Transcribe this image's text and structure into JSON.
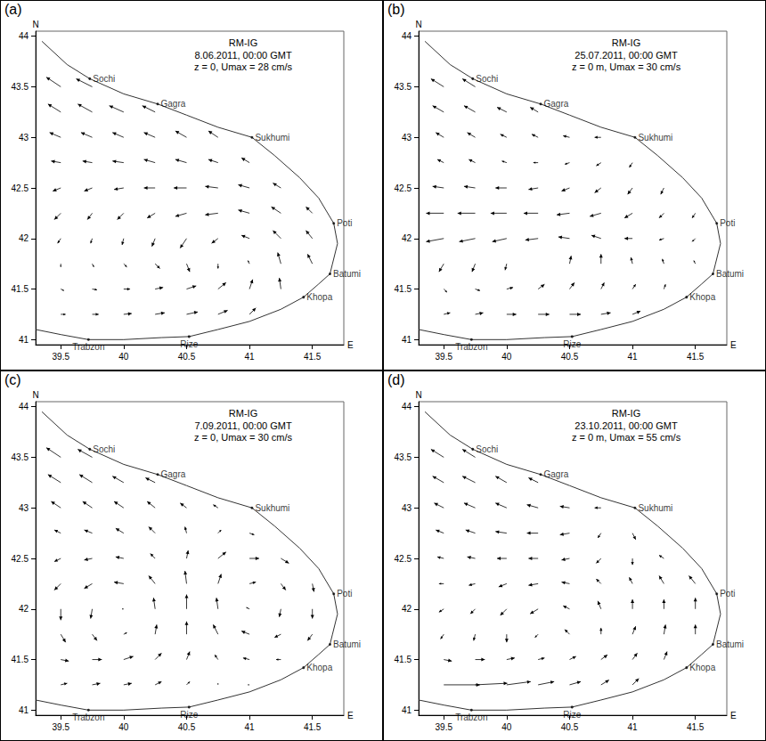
{
  "map": {
    "coastline": [
      [
        39.35,
        43.95
      ],
      [
        39.55,
        43.72
      ],
      [
        39.73,
        43.58
      ],
      [
        40.0,
        43.43
      ],
      [
        40.27,
        43.33
      ],
      [
        40.5,
        43.22
      ],
      [
        40.75,
        43.1
      ],
      [
        41.02,
        43.0
      ],
      [
        41.2,
        42.82
      ],
      [
        41.4,
        42.6
      ],
      [
        41.55,
        42.4
      ],
      [
        41.67,
        42.15
      ],
      [
        41.7,
        41.95
      ],
      [
        41.66,
        41.75
      ],
      [
        41.64,
        41.65
      ],
      [
        41.55,
        41.55
      ],
      [
        41.43,
        41.42
      ],
      [
        41.25,
        41.3
      ],
      [
        41.0,
        41.18
      ],
      [
        40.75,
        41.1
      ],
      [
        40.52,
        41.03
      ],
      [
        40.3,
        41.02
      ],
      [
        40.0,
        41.0
      ],
      [
        39.72,
        41.0
      ],
      [
        39.5,
        41.05
      ],
      [
        39.3,
        41.1
      ]
    ],
    "places": [
      {
        "name": "Sochi",
        "lon": 39.73,
        "lat": 43.58
      },
      {
        "name": "Gagra",
        "lon": 40.27,
        "lat": 43.33
      },
      {
        "name": "Sukhumi",
        "lon": 41.02,
        "lat": 43.0
      },
      {
        "name": "Poti",
        "lon": 41.67,
        "lat": 42.15
      },
      {
        "name": "Batumi",
        "lon": 41.64,
        "lat": 41.65
      },
      {
        "name": "Khopa",
        "lon": 41.43,
        "lat": 41.42
      },
      {
        "name": "Rize",
        "lon": 40.52,
        "lat": 41.03
      },
      {
        "name": "Trabzon",
        "lon": 39.72,
        "lat": 41.0
      }
    ]
  },
  "chart_data": [
    {
      "type": "vector",
      "panel": "(a)",
      "title": "RM-IG",
      "subtitle": [
        "8.06.2011, 00:00 GMT",
        "z = 0, Umax = 28 cm/s"
      ],
      "x_label": "E",
      "y_label": "N",
      "xlim": [
        39.3,
        41.75
      ],
      "ylim": [
        40.95,
        44.05
      ],
      "xticks": [
        39.5,
        40,
        40.5,
        41,
        41.5
      ],
      "yticks": [
        41,
        41.5,
        42,
        42.5,
        43,
        43.5,
        44
      ],
      "lons": [
        39.5,
        39.75,
        40,
        40.25,
        40.5,
        40.75,
        41,
        41.25,
        41.5
      ],
      "lats": [
        41.25,
        41.5,
        41.75,
        42,
        42.25,
        42.5,
        42.75,
        43,
        43.25,
        43.5
      ],
      "u": [
        [
          6,
          8,
          10,
          12,
          14,
          12,
          8,
          null,
          null
        ],
        [
          4,
          6,
          8,
          10,
          12,
          10,
          4,
          -2,
          null
        ],
        [
          0,
          2,
          4,
          6,
          4,
          0,
          -2,
          -4,
          -6
        ],
        [
          -4,
          -2,
          -2,
          -4,
          -8,
          -8,
          -10,
          -10,
          -8
        ],
        [
          -8,
          -6,
          -8,
          -10,
          -14,
          -16,
          -14,
          -12,
          -8
        ],
        [
          -10,
          -10,
          -12,
          -14,
          -16,
          -16,
          -14,
          -10,
          null
        ],
        [
          -12,
          -12,
          -14,
          -14,
          -14,
          -12,
          -10,
          null,
          null
        ],
        [
          -14,
          -14,
          -14,
          -14,
          -14,
          -12,
          null,
          null,
          null
        ],
        [
          -16,
          -18,
          -18,
          -16,
          null,
          null,
          null,
          null,
          null
        ],
        [
          -18,
          -20,
          null,
          null,
          null,
          null,
          null,
          null,
          null
        ]
      ],
      "v": [
        [
          0,
          0,
          1,
          2,
          3,
          5,
          8,
          null,
          null
        ],
        [
          -2,
          -1,
          0,
          2,
          4,
          8,
          12,
          14,
          null
        ],
        [
          -4,
          -4,
          -4,
          -6,
          -10,
          -6,
          4,
          14,
          12
        ],
        [
          -6,
          -6,
          -8,
          -10,
          -12,
          -6,
          4,
          10,
          10
        ],
        [
          -8,
          -8,
          -8,
          -6,
          -4,
          -2,
          4,
          8,
          8
        ],
        [
          -4,
          -4,
          -2,
          0,
          0,
          2,
          4,
          6,
          null
        ],
        [
          2,
          2,
          2,
          4,
          4,
          4,
          6,
          null,
          null
        ],
        [
          6,
          6,
          6,
          6,
          8,
          8,
          null,
          null,
          null
        ],
        [
          10,
          10,
          8,
          8,
          null,
          null,
          null,
          null,
          null
        ],
        [
          12,
          10,
          null,
          null,
          null,
          null,
          null,
          null,
          null
        ]
      ]
    },
    {
      "type": "vector",
      "panel": "(b)",
      "title": "RM-IG",
      "subtitle": [
        "25.07.2011, 00:00 GMT",
        "z = 0 m, Umax = 30 cm/s"
      ],
      "x_label": "E",
      "y_label": "N",
      "xlim": [
        39.3,
        41.75
      ],
      "ylim": [
        40.95,
        44.05
      ],
      "xticks": [
        39.5,
        40,
        40.5,
        41,
        41.5
      ],
      "yticks": [
        41,
        41.5,
        42,
        42.5,
        43,
        43.5,
        44
      ],
      "lons": [
        39.5,
        39.75,
        40,
        40.25,
        40.5,
        40.75,
        41,
        41.25,
        41.5
      ],
      "lats": [
        41.25,
        41.5,
        41.75,
        42,
        42.25,
        42.5,
        42.75,
        43,
        43.25,
        43.5
      ],
      "u": [
        [
          8,
          10,
          12,
          14,
          14,
          12,
          10,
          null,
          null
        ],
        [
          4,
          6,
          8,
          8,
          6,
          4,
          4,
          2,
          null
        ],
        [
          -6,
          -4,
          -2,
          0,
          2,
          0,
          -2,
          -2,
          -2
        ],
        [
          -22,
          -20,
          -18,
          -16,
          -14,
          -12,
          -10,
          -6,
          -4
        ],
        [
          -22,
          -22,
          -20,
          -18,
          -16,
          -14,
          -10,
          -6,
          -4
        ],
        [
          -14,
          -14,
          -14,
          -12,
          -10,
          -8,
          -6,
          -4,
          null
        ],
        [
          -8,
          -8,
          -6,
          -6,
          -6,
          -6,
          -4,
          null,
          null
        ],
        [
          -10,
          -10,
          -8,
          -8,
          -8,
          -8,
          null,
          null,
          null
        ],
        [
          -14,
          -14,
          -12,
          -10,
          null,
          null,
          null,
          null,
          null
        ],
        [
          -16,
          -16,
          null,
          null,
          null,
          null,
          null,
          null,
          null
        ]
      ],
      "v": [
        [
          2,
          2,
          0,
          0,
          0,
          2,
          4,
          null,
          null
        ],
        [
          -4,
          -2,
          2,
          6,
          8,
          8,
          6,
          6,
          null
        ],
        [
          -10,
          -10,
          -8,
          0,
          10,
          12,
          8,
          6,
          4
        ],
        [
          -4,
          -4,
          -4,
          -2,
          2,
          4,
          0,
          -2,
          -4
        ],
        [
          0,
          0,
          0,
          0,
          -2,
          -4,
          -6,
          -6,
          -6
        ],
        [
          2,
          2,
          0,
          -2,
          -4,
          -6,
          -8,
          -8,
          null
        ],
        [
          4,
          4,
          2,
          0,
          -2,
          -4,
          -6,
          null,
          null
        ],
        [
          6,
          6,
          4,
          4,
          2,
          0,
          null,
          null,
          null
        ],
        [
          8,
          8,
          6,
          6,
          null,
          null,
          null,
          null,
          null
        ],
        [
          10,
          10,
          null,
          null,
          null,
          null,
          null,
          null,
          null
        ]
      ]
    },
    {
      "type": "vector",
      "panel": "(c)",
      "title": "RM-IG",
      "subtitle": [
        "7.09.2011, 00:00 GMT",
        "z = 0, Umax = 30 cm/s"
      ],
      "x_label": "E",
      "y_label": "N",
      "xlim": [
        39.3,
        41.75
      ],
      "ylim": [
        40.95,
        44.05
      ],
      "xticks": [
        39.5,
        40,
        40.5,
        41,
        41.5
      ],
      "yticks": [
        41,
        41.5,
        42,
        42.5,
        43,
        43.5,
        44
      ],
      "lons": [
        39.5,
        39.75,
        40,
        40.25,
        40.5,
        40.75,
        41,
        41.25,
        41.5
      ],
      "lats": [
        41.25,
        41.5,
        41.75,
        42,
        42.25,
        42.5,
        42.75,
        43,
        43.25,
        43.5
      ],
      "u": [
        [
          8,
          10,
          10,
          8,
          4,
          0,
          -2,
          null,
          null
        ],
        [
          10,
          12,
          12,
          8,
          4,
          -4,
          -8,
          -6,
          null
        ],
        [
          6,
          6,
          4,
          2,
          0,
          -6,
          -10,
          -8,
          -6
        ],
        [
          0,
          -2,
          -2,
          -2,
          0,
          -2,
          -4,
          -2,
          0
        ],
        [
          -8,
          -10,
          -12,
          -8,
          -2,
          4,
          8,
          6,
          2
        ],
        [
          -8,
          -10,
          -10,
          -6,
          2,
          10,
          12,
          10,
          null
        ],
        [
          -8,
          -10,
          -10,
          -8,
          -2,
          4,
          6,
          null,
          null
        ],
        [
          -12,
          -12,
          -12,
          -10,
          -8,
          -6,
          null,
          null,
          null
        ],
        [
          -16,
          -16,
          -14,
          -12,
          null,
          null,
          null,
          null,
          null
        ],
        [
          -18,
          -18,
          null,
          null,
          null,
          null,
          null,
          null,
          null
        ]
      ],
      "v": [
        [
          2,
          2,
          2,
          4,
          4,
          2,
          0,
          null,
          null
        ],
        [
          -2,
          0,
          4,
          8,
          10,
          6,
          2,
          0,
          null
        ],
        [
          -10,
          -8,
          2,
          12,
          16,
          12,
          4,
          -4,
          -8
        ],
        [
          -14,
          -12,
          0,
          14,
          18,
          14,
          2,
          -10,
          -12
        ],
        [
          -8,
          -6,
          2,
          10,
          16,
          12,
          2,
          -8,
          -10
        ],
        [
          -4,
          -2,
          2,
          6,
          10,
          8,
          0,
          -6,
          null
        ],
        [
          4,
          4,
          6,
          8,
          8,
          4,
          -2,
          null,
          null
        ],
        [
          8,
          8,
          8,
          8,
          6,
          4,
          null,
          null,
          null
        ],
        [
          10,
          10,
          8,
          6,
          null,
          null,
          null,
          null,
          null
        ],
        [
          12,
          10,
          null,
          null,
          null,
          null,
          null,
          null,
          null
        ]
      ]
    },
    {
      "type": "vector",
      "panel": "(d)",
      "title": "RM-IG",
      "subtitle": [
        "23.10.2011, 00:00 GMT",
        "z = 0 m, Umax = 55 cm/s"
      ],
      "x_label": "E",
      "y_label": "N",
      "xlim": [
        39.3,
        41.75
      ],
      "ylim": [
        40.95,
        44.05
      ],
      "xticks": [
        39.5,
        40,
        40.5,
        41,
        41.5
      ],
      "yticks": [
        41,
        41.5,
        42,
        42.5,
        43,
        43.5,
        44
      ],
      "lons": [
        39.5,
        39.75,
        40,
        40.25,
        40.5,
        40.75,
        41,
        41.25,
        41.5
      ],
      "lats": [
        41.25,
        41.5,
        41.75,
        42,
        42.25,
        42.5,
        42.75,
        43,
        43.25,
        43.5
      ],
      "u": [
        [
          45,
          40,
          30,
          20,
          14,
          10,
          8,
          null,
          null
        ],
        [
          10,
          12,
          10,
          8,
          8,
          8,
          6,
          4,
          null
        ],
        [
          -4,
          -2,
          0,
          -4,
          -6,
          0,
          4,
          2,
          0
        ],
        [
          -6,
          -6,
          -8,
          -10,
          -8,
          -4,
          0,
          0,
          0
        ],
        [
          -6,
          -8,
          -10,
          -12,
          -10,
          -6,
          -4,
          -6,
          -8
        ],
        [
          -8,
          -10,
          -12,
          -12,
          -10,
          -6,
          0,
          -6,
          null
        ],
        [
          -10,
          -12,
          -14,
          -14,
          -12,
          -4,
          4,
          null,
          null
        ],
        [
          -12,
          -14,
          -14,
          -14,
          -12,
          -8,
          null,
          null,
          null
        ],
        [
          -14,
          -16,
          -14,
          -12,
          null,
          null,
          null,
          null,
          null
        ],
        [
          -16,
          -16,
          null,
          null,
          null,
          null,
          null,
          null,
          null
        ]
      ],
      "v": [
        [
          0,
          2,
          4,
          4,
          4,
          6,
          8,
          null,
          null
        ],
        [
          -2,
          0,
          2,
          2,
          4,
          6,
          8,
          10,
          null
        ],
        [
          -6,
          -8,
          -10,
          -4,
          6,
          8,
          10,
          12,
          12
        ],
        [
          -4,
          -6,
          -8,
          -6,
          4,
          10,
          12,
          12,
          14
        ],
        [
          0,
          -2,
          -4,
          -2,
          2,
          6,
          8,
          10,
          10
        ],
        [
          2,
          2,
          0,
          0,
          -2,
          -6,
          -8,
          4,
          null
        ],
        [
          4,
          4,
          2,
          0,
          -2,
          -6,
          -8,
          null,
          null
        ],
        [
          6,
          6,
          6,
          4,
          2,
          0,
          null,
          null,
          null
        ],
        [
          8,
          8,
          8,
          6,
          null,
          null,
          null,
          null,
          null
        ],
        [
          10,
          10,
          null,
          null,
          null,
          null,
          null,
          null,
          null
        ]
      ]
    }
  ]
}
